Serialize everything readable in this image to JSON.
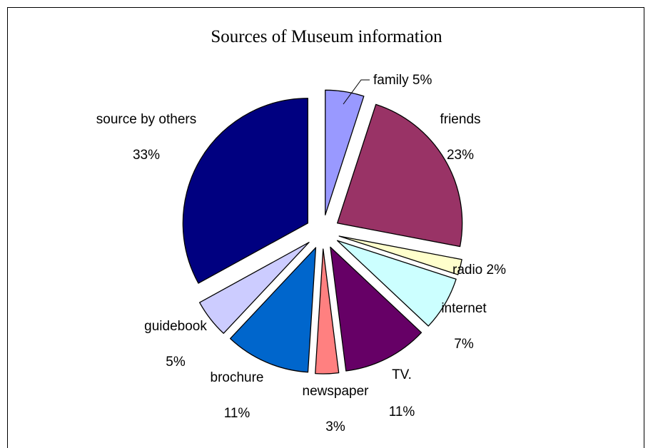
{
  "chart_data": {
    "type": "pie",
    "title": "Sources of Museum information",
    "slices": [
      {
        "label": "family",
        "pct_text": "5%",
        "value": 5,
        "color": "#9999ff"
      },
      {
        "label": "friends",
        "pct_text": "23%",
        "value": 23,
        "color": "#993366"
      },
      {
        "label": "radio",
        "pct_text": "2%",
        "value": 2,
        "color": "#ffffcc"
      },
      {
        "label": "internet",
        "pct_text": "7%",
        "value": 7,
        "color": "#ccffff"
      },
      {
        "label": "TV.",
        "pct_text": "11%",
        "value": 11,
        "color": "#660066"
      },
      {
        "label": "newspaper",
        "pct_text": "3%",
        "value": 3,
        "color": "#ff8080"
      },
      {
        "label": "brochure",
        "pct_text": "11%",
        "value": 11,
        "color": "#0066cc"
      },
      {
        "label": "guidebook",
        "pct_text": "5%",
        "value": 5,
        "color": "#ccccff"
      },
      {
        "label": "source by others",
        "pct_text": "33%",
        "value": 33,
        "color": "#000080"
      }
    ],
    "legend": "none"
  }
}
